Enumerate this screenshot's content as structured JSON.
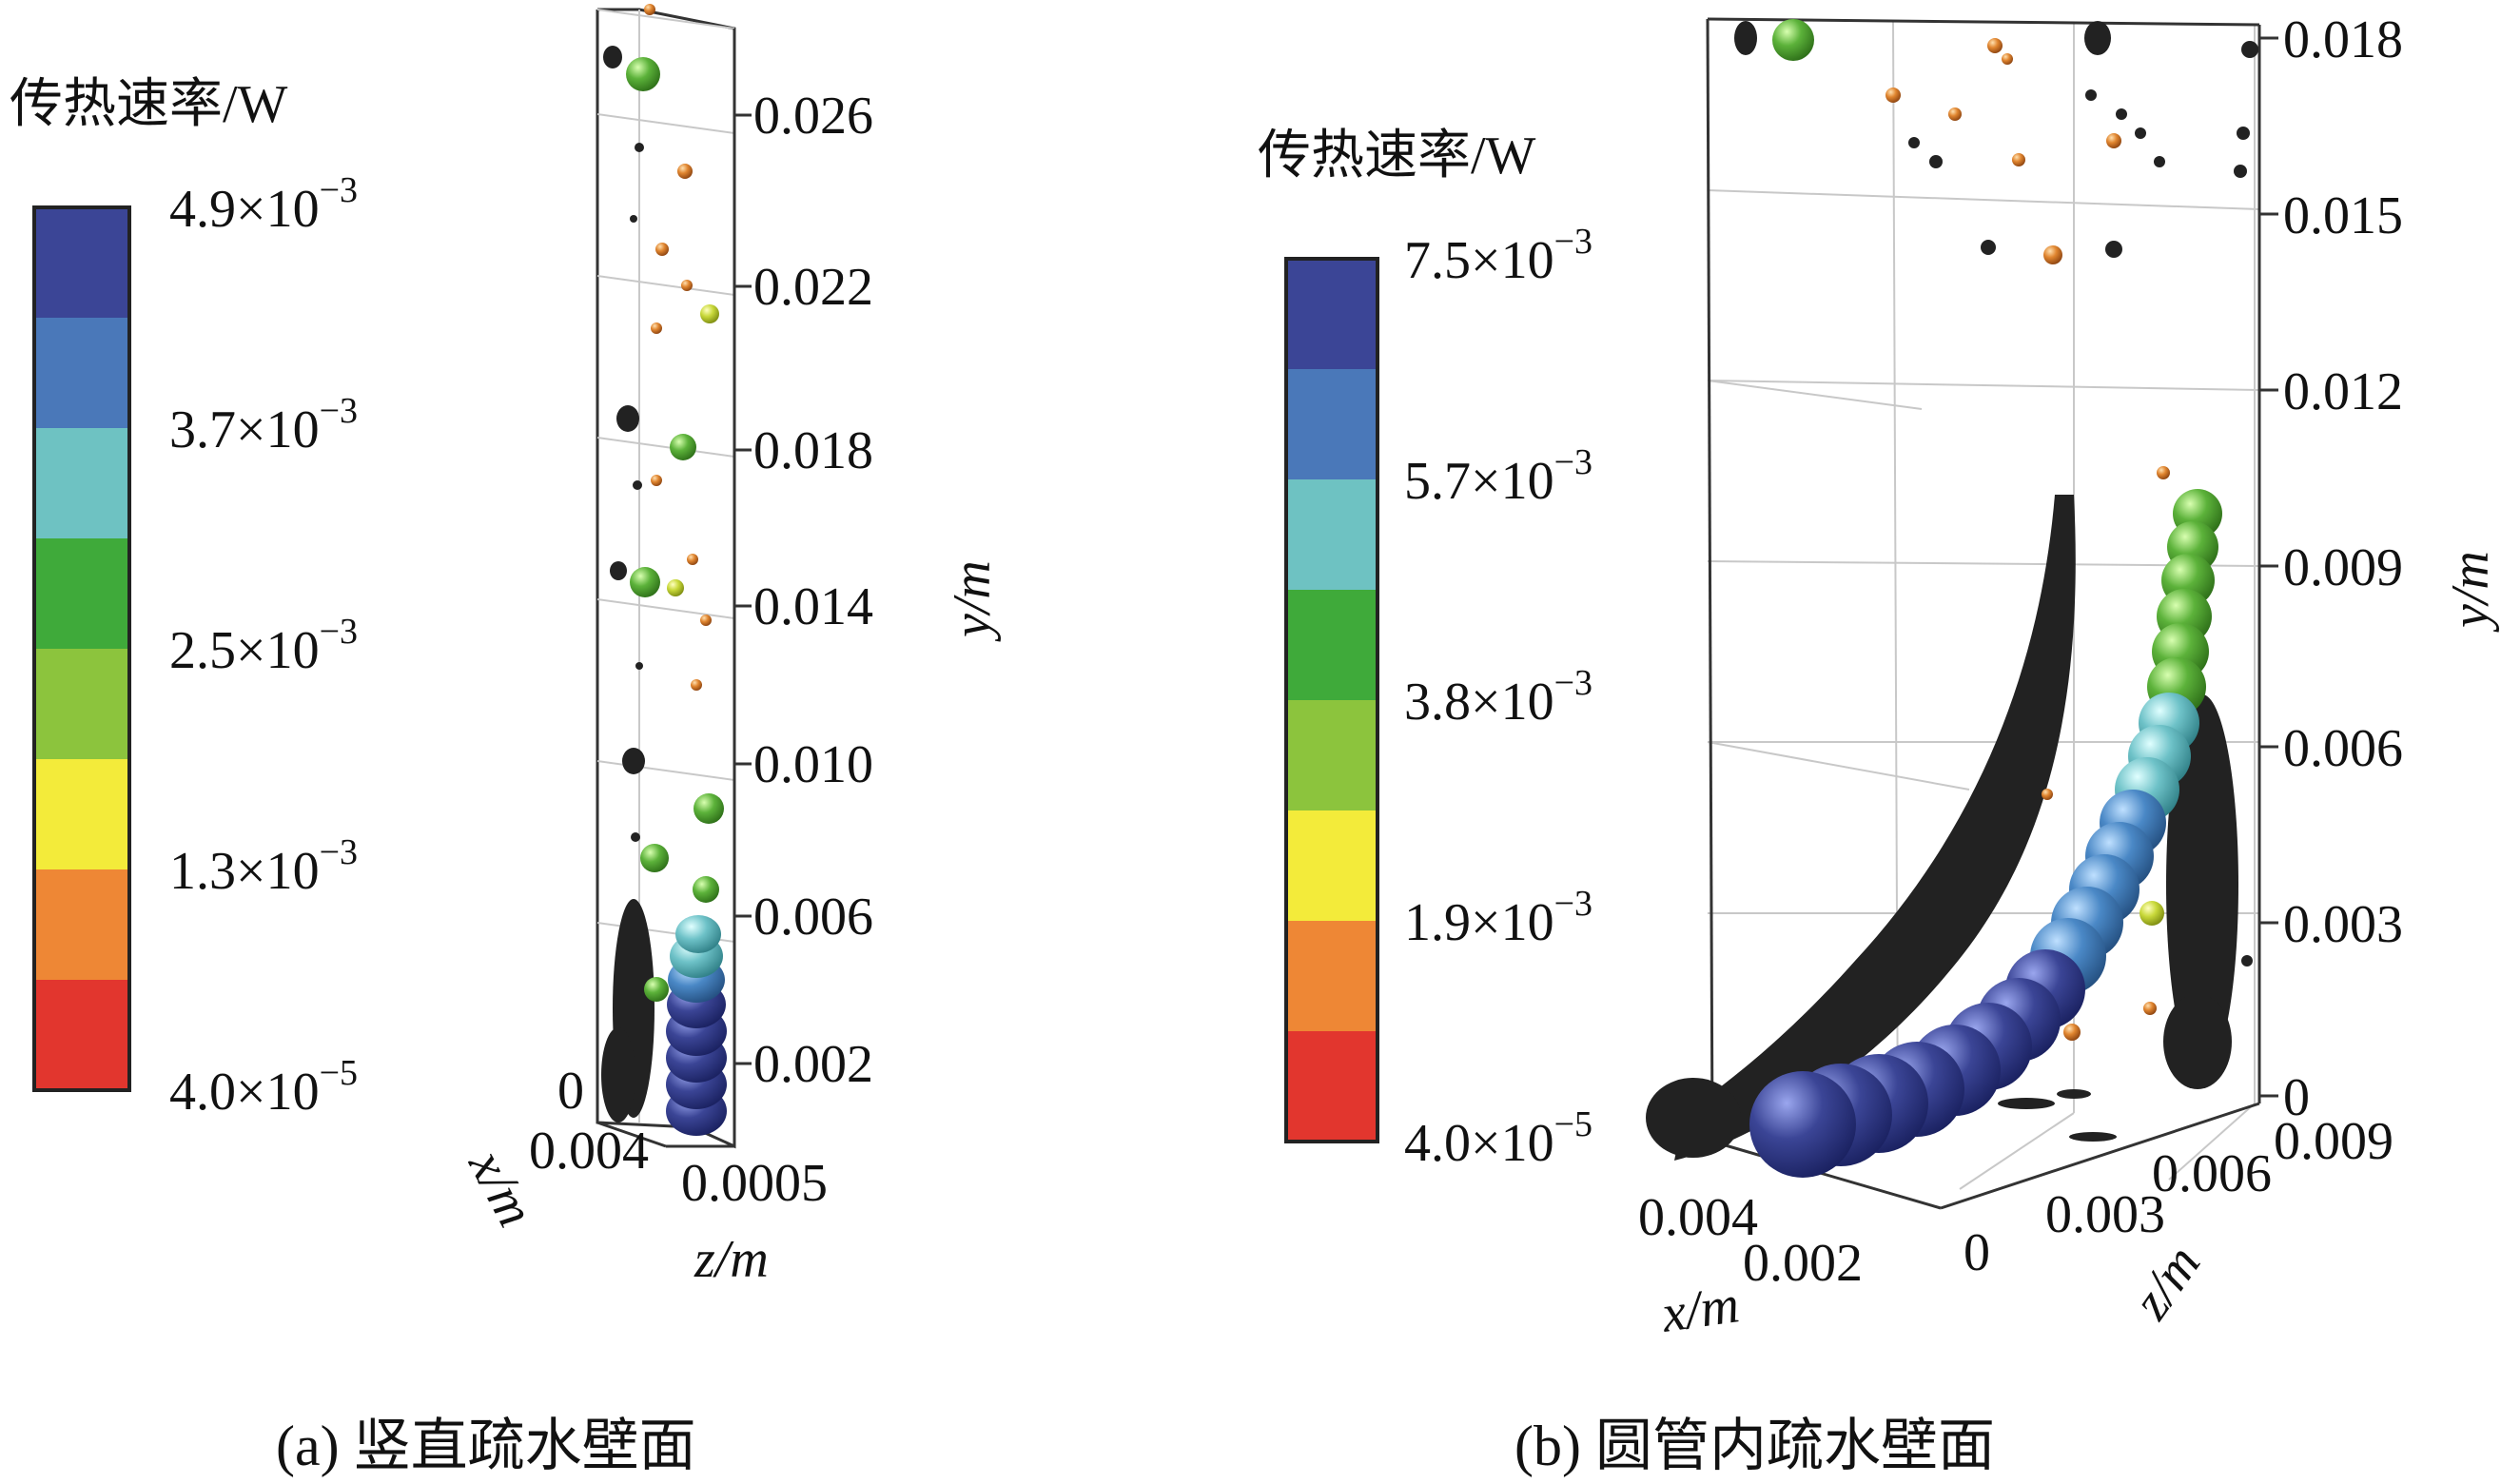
{
  "panel_a": {
    "caption": "(a) 竖直疏水壁面",
    "colorbar": {
      "title": "传热速率/W",
      "ticks": [
        {
          "mant": "4.9×10",
          "exp": "−3"
        },
        {
          "mant": "3.7×10",
          "exp": "−3"
        },
        {
          "mant": "2.5×10",
          "exp": "−3"
        },
        {
          "mant": "1.3×10",
          "exp": "−3"
        },
        {
          "mant": "4.0×10",
          "exp": "−5"
        }
      ],
      "colors": [
        "#3b4596",
        "#4a78b9",
        "#6ec2c2",
        "#3faa3a",
        "#8cc43d",
        "#f3eb3a",
        "#ee8735",
        "#e2362e"
      ]
    },
    "y_axis": {
      "label": "y/m",
      "ticks": [
        "0.026",
        "0.022",
        "0.018",
        "0.014",
        "0.010",
        "0.006",
        "0.002"
      ]
    },
    "x_axis": {
      "label": "x/m",
      "ticks": [
        "0",
        "0.004"
      ]
    },
    "z_axis": {
      "label": "z/m",
      "ticks": [
        "0.0005"
      ]
    }
  },
  "panel_b": {
    "caption": "(b) 圆管内疏水壁面",
    "colorbar": {
      "title": "传热速率/W",
      "ticks": [
        {
          "mant": "7.5×10",
          "exp": "−3"
        },
        {
          "mant": "5.7×10",
          "exp": "−3"
        },
        {
          "mant": "3.8×10",
          "exp": "−3"
        },
        {
          "mant": "1.9×10",
          "exp": "−3"
        },
        {
          "mant": "4.0×10",
          "exp": "−5"
        }
      ],
      "colors": [
        "#3b4596",
        "#4a78b9",
        "#6ec2c2",
        "#3faa3a",
        "#8cc43d",
        "#f3eb3a",
        "#ee8735",
        "#e2362e"
      ]
    },
    "y_axis": {
      "label": "y/m",
      "ticks": [
        "0.018",
        "0.015",
        "0.012",
        "0.009",
        "0.006",
        "0.003",
        "0"
      ]
    },
    "x_axis": {
      "label": "x/m",
      "ticks": [
        "0.004",
        "0.002"
      ]
    },
    "z_axis": {
      "label": "z/m",
      "ticks": [
        "0",
        "0.003",
        "0.006",
        "0.009"
      ]
    }
  }
}
